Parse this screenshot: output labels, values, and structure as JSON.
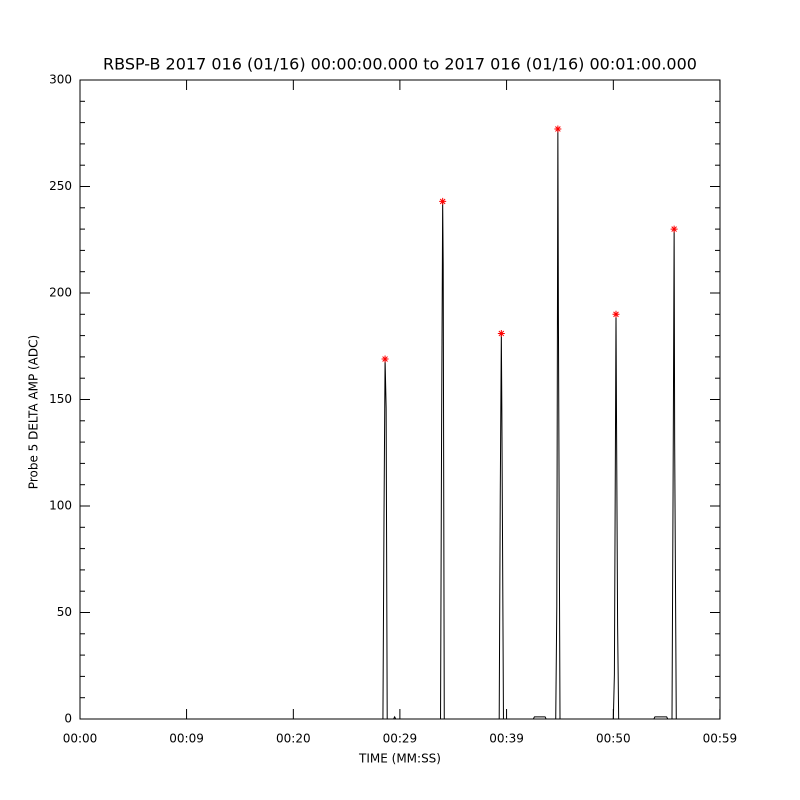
{
  "chart_data": {
    "type": "line",
    "title": "RBSP-B 2017 016 (01/16) 00:00:00.000 to 2017 016 (01/16) 00:01:00.000",
    "x_label": "TIME (MM:SS)",
    "y_label": "Probe 5 DELTA AMP (ADC)",
    "xlim": [
      0,
      60
    ],
    "ylim": [
      0,
      300
    ],
    "xticks": [
      {
        "value": 0,
        "label": "00:00"
      },
      {
        "value": 9.99,
        "label": "00:09"
      },
      {
        "value": 20,
        "label": "00:20"
      },
      {
        "value": 29.99,
        "label": "00:29"
      },
      {
        "value": 39.99,
        "label": "00:39"
      },
      {
        "value": 50,
        "label": "00:50"
      },
      {
        "value": 59.99,
        "label": "00:59"
      }
    ],
    "yticks": [
      0,
      50,
      100,
      150,
      200,
      250,
      300
    ],
    "yminor_ticks": [
      10,
      20,
      30,
      40,
      60,
      70,
      80,
      90,
      110,
      120,
      130,
      140,
      160,
      170,
      180,
      190,
      210,
      220,
      230,
      240,
      260,
      270,
      280,
      290
    ],
    "series": [
      {
        "color": "#000000",
        "x": [
          0,
          28.4,
          28.5,
          28.6,
          28.7,
          28.8,
          29.4,
          29.5,
          29.6,
          33.8,
          33.9,
          34.0,
          34.05,
          34.15,
          39.3,
          39.4,
          39.5,
          39.55,
          39.7,
          42.5,
          42.6,
          43.6,
          43.7,
          44.6,
          44.7,
          44.8,
          44.85,
          45.0,
          50.0,
          50.1,
          50.25,
          50.3,
          50.4,
          50.5,
          53.8,
          53.9,
          55.0,
          55.1,
          55.5,
          55.6,
          55.7,
          55.75,
          55.9,
          60
        ],
        "values": [
          0,
          0,
          95,
          169,
          146,
          0,
          0,
          1,
          0,
          0,
          137,
          243,
          213,
          0,
          0,
          106,
          181,
          143,
          0,
          0,
          1,
          1,
          0,
          0,
          53,
          277,
          190,
          0,
          0,
          21,
          190,
          139,
          44,
          0,
          0,
          1,
          1,
          0,
          0,
          107,
          230,
          130,
          0,
          0
        ]
      },
      {
        "color": "#ff0000",
        "marker": "asterisk",
        "x": [
          28.6,
          34.0,
          39.5,
          44.8,
          50.25,
          55.7
        ],
        "values": [
          169,
          243,
          181,
          277,
          190,
          230
        ]
      }
    ]
  }
}
